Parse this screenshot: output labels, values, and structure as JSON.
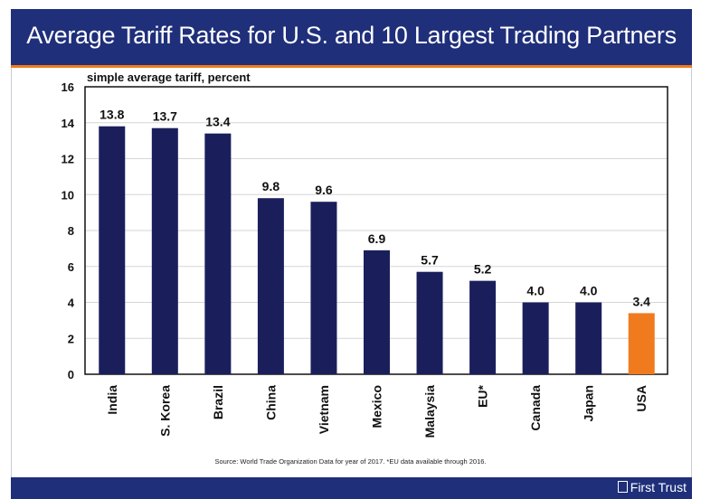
{
  "title": "Average Tariff Rates for U.S. and 10 Largest Trading Partners",
  "source_note": "Source: World Trade Organization Data for year of 2017. *EU data available through 2016.",
  "brand": "First Trust",
  "colors": {
    "title_bar": "#1f2f7a",
    "bar": "#1a1f5c",
    "highlight_bar": "#f07a1e",
    "accent_line": "#f07a1e"
  },
  "chart_data": {
    "type": "bar",
    "ylabel": "simple average tariff, percent",
    "categories": [
      "India",
      "S. Korea",
      "Brazil",
      "China",
      "Vietnam",
      "Mexico",
      "Malaysia",
      "EU*",
      "Canada",
      "Japan",
      "USA"
    ],
    "values": [
      13.8,
      13.7,
      13.4,
      9.8,
      9.6,
      6.9,
      5.7,
      5.2,
      4.0,
      4.0,
      3.4
    ],
    "value_labels": [
      "13.8",
      "13.7",
      "13.4",
      "9.8",
      "9.6",
      "6.9",
      "5.7",
      "5.2",
      "4.0",
      "4.0",
      "3.4"
    ],
    "highlight": "USA",
    "ylim": [
      0,
      16
    ],
    "yticks": [
      0,
      2,
      4,
      6,
      8,
      10,
      12,
      14,
      16
    ],
    "grid": true
  }
}
